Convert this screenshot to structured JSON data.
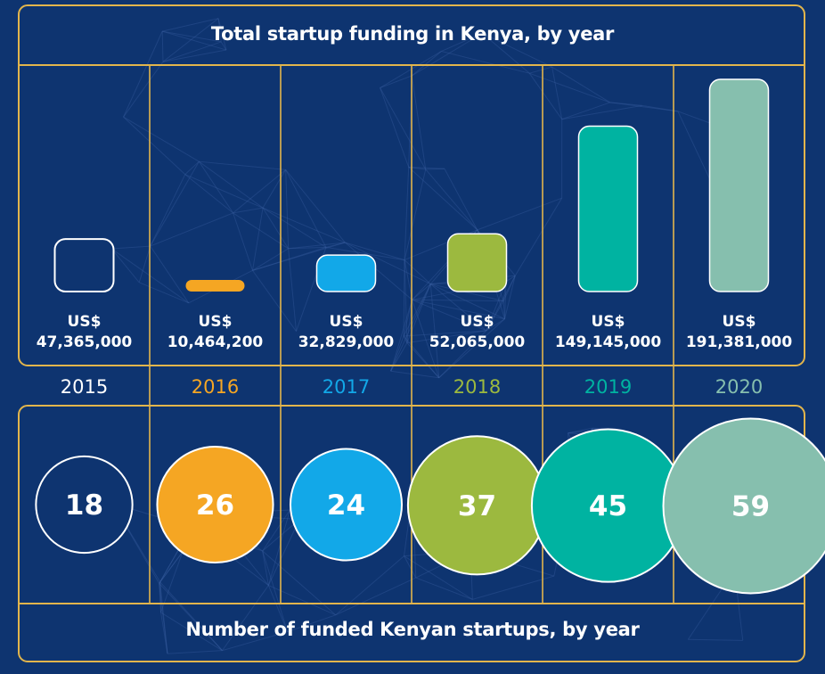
{
  "chart_data": [
    {
      "type": "bar",
      "title": "Total startup funding in Kenya, by year",
      "categories": [
        "2015",
        "2016",
        "2017",
        "2018",
        "2019",
        "2020"
      ],
      "values": [
        47365000,
        10464200,
        32829000,
        52065000,
        149145000,
        191381000
      ],
      "value_labels": [
        {
          "currency": "US$",
          "amount": "47,365,000"
        },
        {
          "currency": "US$",
          "amount": "10,464,200"
        },
        {
          "currency": "US$",
          "amount": "32,829,000"
        },
        {
          "currency": "US$",
          "amount": "52,065,000"
        },
        {
          "currency": "US$",
          "amount": "149,145,000"
        },
        {
          "currency": "US$",
          "amount": "191,381,000"
        }
      ],
      "colors": [
        "#0e3470",
        "#f5a623",
        "#12a8e8",
        "#9cb93f",
        "#00b3a1",
        "#86bfae"
      ],
      "year_label_colors": [
        "#ffffff",
        "#f5a623",
        "#12a8e8",
        "#9cb93f",
        "#00b3a1",
        "#86bfae"
      ],
      "ylim": [
        0,
        191381000
      ],
      "grid": false
    },
    {
      "type": "bubble",
      "title": "Number of funded Kenyan startups, by year",
      "categories": [
        "2015",
        "2016",
        "2017",
        "2018",
        "2019",
        "2020"
      ],
      "values": [
        18,
        26,
        24,
        37,
        45,
        59
      ],
      "colors": [
        "#0e3470",
        "#f5a623",
        "#12a8e8",
        "#9cb93f",
        "#00b3a1",
        "#86bfae"
      ]
    }
  ],
  "colors": {
    "background": "#0e3470",
    "frame": "#e2b54c",
    "text": "#ffffff"
  }
}
